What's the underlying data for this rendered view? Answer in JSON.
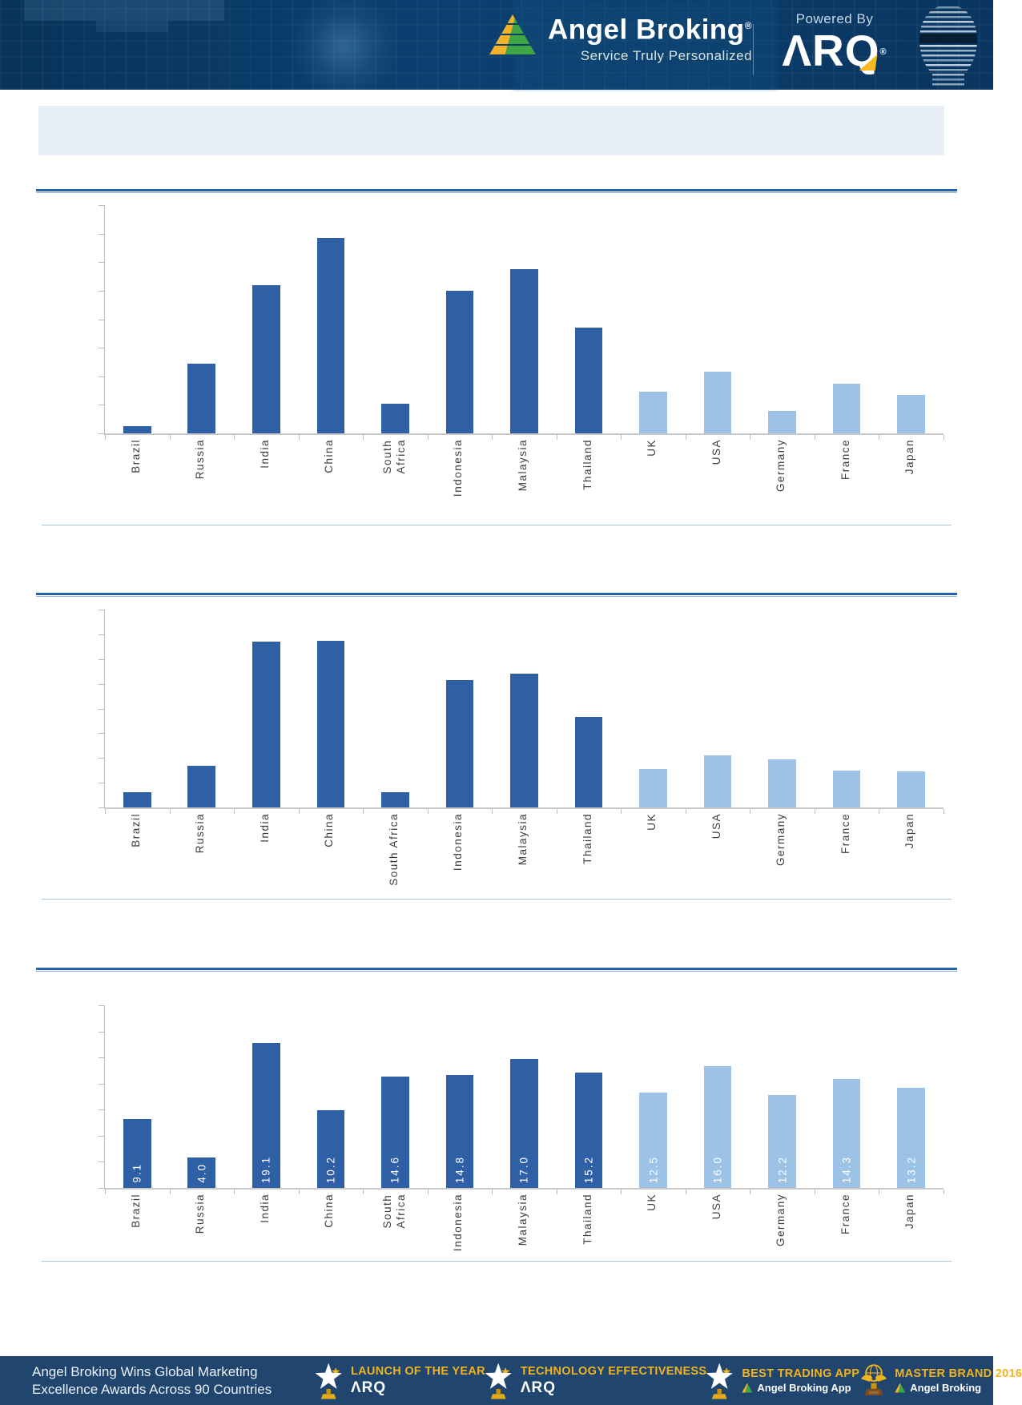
{
  "header": {
    "brand_name": "Angel Broking",
    "brand_reg": "®",
    "tagline": "Service Truly Personalized",
    "powered_by": "Powered By",
    "arq_wordmark": "ΛRQ",
    "arq_reg": "®"
  },
  "title_band": {
    "text": ""
  },
  "colors": {
    "bar_dark": "#2F5FA5",
    "bar_light": "#9CC2E5",
    "axis": "#BDBDBD",
    "divider_dark": "#2663AE",
    "divider_light": "#8FB3D9",
    "header_bg": "#0A3D68",
    "footer_bg": "#20456E",
    "gold": "#F2B31C"
  },
  "chart_data": [
    {
      "type": "bar",
      "title": "",
      "xlabel": "",
      "ylabel": "",
      "categories": [
        "Brazil",
        "Russia",
        "India",
        "China",
        "South\nAfrica",
        "Indonesia",
        "Malaysia",
        "Thailand",
        "UK",
        "USA",
        "Germany",
        "France",
        "Japan"
      ],
      "values": [
        0.25,
        2.45,
        5.2,
        6.85,
        1.05,
        5.0,
        5.75,
        3.7,
        1.45,
        2.15,
        0.8,
        1.75,
        1.35
      ],
      "ylim": [
        0,
        8
      ],
      "yticks": 8,
      "grid": false,
      "dark_series_count": 8,
      "value_labels": false,
      "legend": "none"
    },
    {
      "type": "bar",
      "title": "",
      "xlabel": "",
      "ylabel": "",
      "categories": [
        "Brazil",
        "Russia",
        "India",
        "China",
        "South Africa",
        "Indonesia",
        "Malaysia",
        "Thailand",
        "UK",
        "USA",
        "Germany",
        "France",
        "Japan"
      ],
      "values": [
        0.6,
        1.7,
        6.7,
        6.75,
        0.6,
        5.15,
        5.4,
        3.65,
        1.55,
        2.1,
        1.95,
        1.5,
        1.45
      ],
      "ylim": [
        0,
        8
      ],
      "yticks": 8,
      "grid": false,
      "dark_series_count": 8,
      "value_labels": false,
      "legend": "none"
    },
    {
      "type": "bar",
      "title": "",
      "xlabel": "",
      "ylabel": "",
      "categories": [
        "Brazil",
        "Russia",
        "India",
        "China",
        "South\nAfrica",
        "Indonesia",
        "Malaysia",
        "Thailand",
        "UK",
        "USA",
        "Germany",
        "France",
        "Japan"
      ],
      "values": [
        9.1,
        4.0,
        19.1,
        10.2,
        14.6,
        14.8,
        17.0,
        15.2,
        12.5,
        16.0,
        12.2,
        14.3,
        13.2
      ],
      "ylim": [
        0,
        24
      ],
      "yticks": 7,
      "grid": false,
      "dark_series_count": 8,
      "value_labels": true,
      "legend": "none"
    }
  ],
  "footer": {
    "left_line1": "Angel Broking Wins Global Marketing",
    "left_line2": "Excellence Awards Across 90 Countries",
    "awards": [
      {
        "title": "LAUNCH OF THE YEAR",
        "subtitle": "ΛRQ",
        "icon": "star-trophy"
      },
      {
        "title": "TECHNOLOGY EFFECTIVENESS",
        "subtitle": "ΛRQ",
        "icon": "star-trophy"
      },
      {
        "title": "BEST TRADING APP",
        "subtitle": "Angel Broking App",
        "icon": "star-trophy"
      },
      {
        "title": "MASTER BRAND 2016",
        "subtitle": "Angel Broking",
        "icon": "globe-trophy"
      }
    ]
  }
}
